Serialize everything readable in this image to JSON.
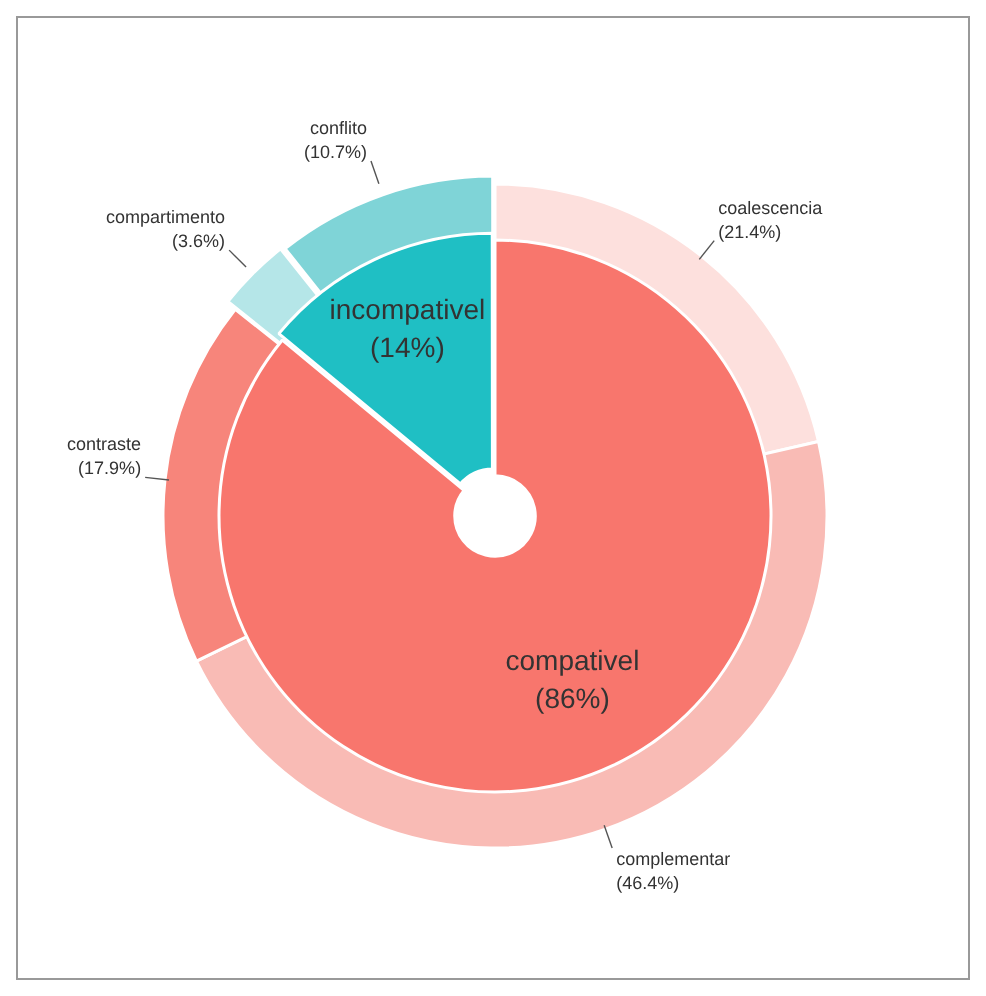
{
  "chart_data": [
    {
      "type": "donut",
      "categories": [
        "compativel",
        "incompativel"
      ],
      "values": [
        86,
        14
      ],
      "value_labels": [
        "(86%)",
        "(14%)"
      ],
      "colors": [
        "#f8766d",
        "#1fbfc4"
      ]
    },
    {
      "type": "donut",
      "categories": [
        "coalescencia",
        "complementar",
        "contraste",
        "compartimento",
        "conflito"
      ],
      "values": [
        21.4,
        46.4,
        17.9,
        3.6,
        10.7
      ],
      "value_labels": [
        "(21.4%)",
        "(46.4%)",
        "(17.9%)",
        "(3.6%)",
        "(10.7%)"
      ],
      "colors": [
        "#fde0dd",
        "#f9bbb5",
        "#f7857b",
        "#b5e6e8",
        "#7fd4d7"
      ]
    }
  ]
}
